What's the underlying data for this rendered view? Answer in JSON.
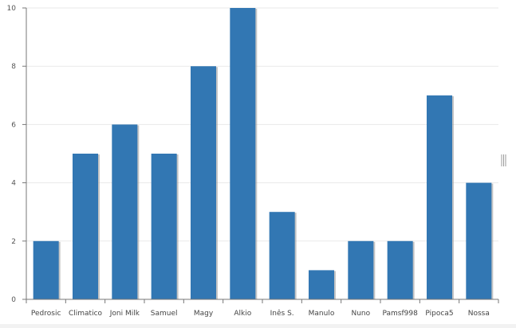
{
  "chart_data": {
    "type": "bar",
    "categories": [
      "Pedrosic",
      "Climatico",
      "Joni Milk",
      "Samuel",
      "Magy",
      "Alkio",
      "Inês S.",
      "Manulo",
      "Nuno",
      "Pamsf998",
      "Pipoca5",
      "Nossa"
    ],
    "values": [
      2,
      5,
      6,
      5,
      8,
      10,
      3,
      1,
      2,
      2,
      7,
      4
    ],
    "ylim": [
      0,
      10
    ],
    "yticks": [
      0,
      2,
      4,
      6,
      8,
      10
    ],
    "title": "",
    "xlabel": "",
    "ylabel": "",
    "grid": true,
    "colors": {
      "bar": "#3277b3",
      "bar_shadow": "#9c9c9c",
      "grid": "#e9e9e9",
      "axis": "#777777"
    }
  }
}
